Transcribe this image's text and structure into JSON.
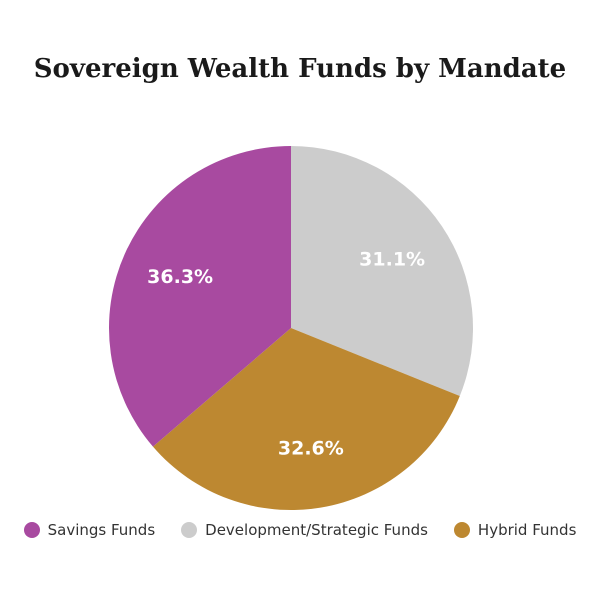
{
  "chart_data": {
    "type": "pie",
    "title": "Sovereign Wealth Funds by Mandate",
    "categories": [
      "Savings Funds",
      "Development/Strategic Funds",
      "Hybrid Funds"
    ],
    "values": [
      36.3,
      31.1,
      32.6
    ],
    "value_labels": [
      "36.3%",
      "31.1%",
      "32.6%"
    ],
    "colors": [
      "#a84aa0",
      "#cccccc",
      "#bd8831"
    ],
    "legend_position": "bottom"
  }
}
